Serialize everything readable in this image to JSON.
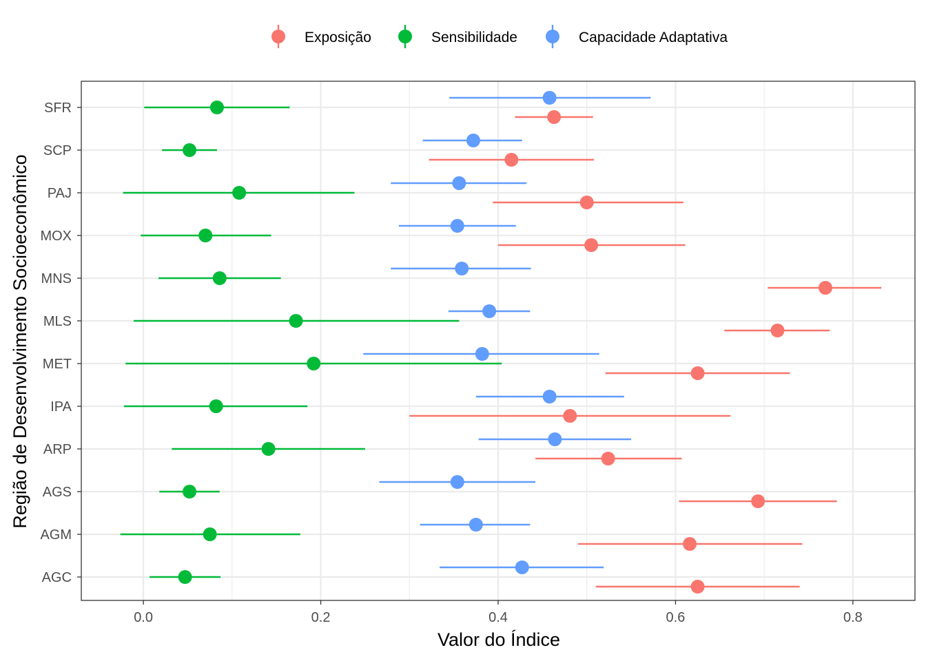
{
  "chart_data": {
    "type": "scatter",
    "subtype": "dot-errorbar",
    "orientation": "horizontal",
    "xlabel": "Valor do Índice",
    "ylabel": "Região de Desenvolvimento Socioeconômico",
    "xlim": [
      -0.07,
      0.87
    ],
    "xticks": [
      0.0,
      0.2,
      0.4,
      0.6,
      0.8
    ],
    "xtick_labels": [
      "0.0",
      "0.2",
      "0.4",
      "0.6",
      "0.8"
    ],
    "categories": [
      "SFR",
      "SCP",
      "PAJ",
      "MOX",
      "MNS",
      "MLS",
      "MET",
      "IPA",
      "ARP",
      "AGS",
      "AGM",
      "AGC"
    ],
    "grid": true,
    "legend_position": "top",
    "series": [
      {
        "name": "Exposição",
        "color": "#F8766D",
        "values": [
          0.463,
          0.415,
          0.5,
          0.505,
          0.769,
          0.715,
          0.625,
          0.481,
          0.524,
          0.693,
          0.616,
          0.625
        ],
        "lower": [
          0.419,
          0.322,
          0.394,
          0.4,
          0.704,
          0.655,
          0.521,
          0.3,
          0.442,
          0.604,
          0.49,
          0.51
        ],
        "upper": [
          0.507,
          0.508,
          0.609,
          0.611,
          0.832,
          0.774,
          0.729,
          0.662,
          0.607,
          0.782,
          0.743,
          0.74
        ]
      },
      {
        "name": "Sensibilidade",
        "color": "#00BA38",
        "values": [
          0.083,
          0.052,
          0.108,
          0.07,
          0.086,
          0.172,
          0.192,
          0.082,
          0.141,
          0.052,
          0.075,
          0.047
        ],
        "lower": [
          0.001,
          0.021,
          -0.023,
          -0.003,
          0.017,
          -0.011,
          -0.02,
          -0.022,
          0.032,
          0.018,
          -0.026,
          0.007
        ],
        "upper": [
          0.165,
          0.083,
          0.238,
          0.144,
          0.155,
          0.356,
          0.404,
          0.185,
          0.25,
          0.086,
          0.177,
          0.087
        ]
      },
      {
        "name": "Capacidade Adaptativa",
        "color": "#619CFF",
        "values": [
          0.458,
          0.372,
          0.356,
          0.354,
          0.359,
          0.39,
          0.382,
          0.458,
          0.464,
          0.354,
          0.375,
          0.427
        ],
        "lower": [
          0.345,
          0.315,
          0.279,
          0.288,
          0.279,
          0.344,
          0.248,
          0.375,
          0.378,
          0.266,
          0.312,
          0.334
        ],
        "upper": [
          0.572,
          0.427,
          0.432,
          0.42,
          0.437,
          0.436,
          0.514,
          0.542,
          0.55,
          0.442,
          0.436,
          0.519
        ]
      }
    ]
  }
}
